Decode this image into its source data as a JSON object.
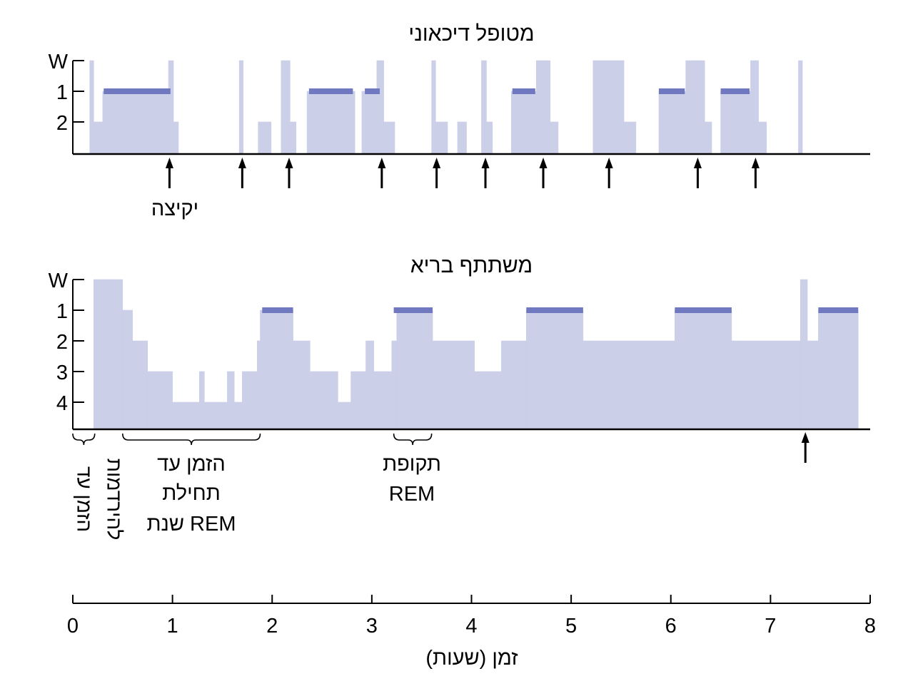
{
  "chart_data": [
    {
      "type": "area",
      "title": "מטופל דיכאוני",
      "x_unit": "hours",
      "stage_labels": [
        "W",
        "1",
        "2"
      ],
      "stages": {
        "W": 0,
        "1": 1,
        "2": 2
      },
      "ylim": [
        0,
        2.9
      ],
      "segments": [
        [
          0.17,
          0.21,
          0
        ],
        [
          0.21,
          0.3,
          2
        ],
        [
          0.3,
          0.96,
          1
        ],
        [
          0.96,
          1.01,
          0
        ],
        [
          1.01,
          1.06,
          2
        ],
        [
          1.06,
          1.67,
          null
        ],
        [
          1.67,
          1.71,
          0
        ],
        [
          1.71,
          1.86,
          null
        ],
        [
          1.86,
          1.99,
          2
        ],
        [
          1.99,
          2.09,
          null
        ],
        [
          2.09,
          2.18,
          0
        ],
        [
          2.18,
          2.24,
          2
        ],
        [
          2.24,
          2.35,
          null
        ],
        [
          2.35,
          2.83,
          1
        ],
        [
          2.83,
          2.9,
          null
        ],
        [
          2.9,
          3.05,
          1
        ],
        [
          3.05,
          3.12,
          0
        ],
        [
          3.12,
          3.23,
          2
        ],
        [
          3.23,
          3.6,
          null
        ],
        [
          3.6,
          3.64,
          0
        ],
        [
          3.64,
          3.76,
          2
        ],
        [
          3.76,
          3.86,
          null
        ],
        [
          3.86,
          3.95,
          2
        ],
        [
          3.95,
          4.1,
          null
        ],
        [
          4.1,
          4.15,
          0
        ],
        [
          4.15,
          4.21,
          2
        ],
        [
          4.21,
          4.4,
          null
        ],
        [
          4.4,
          4.65,
          1
        ],
        [
          4.65,
          4.79,
          0
        ],
        [
          4.79,
          4.87,
          2
        ],
        [
          4.87,
          5.22,
          null
        ],
        [
          5.22,
          5.53,
          0
        ],
        [
          5.53,
          5.65,
          2
        ],
        [
          5.65,
          5.88,
          null
        ],
        [
          5.88,
          6.15,
          1
        ],
        [
          6.15,
          6.34,
          0
        ],
        [
          6.34,
          6.41,
          2
        ],
        [
          6.41,
          6.5,
          null
        ],
        [
          6.5,
          6.8,
          1
        ],
        [
          6.8,
          6.88,
          0
        ],
        [
          6.88,
          6.96,
          2
        ],
        [
          6.96,
          7.28,
          null
        ],
        [
          7.28,
          7.32,
          0
        ]
      ],
      "rem_bars": [
        [
          0.31,
          0.98
        ],
        [
          2.37,
          2.81
        ],
        [
          2.93,
          3.08
        ],
        [
          4.41,
          4.64
        ],
        [
          5.88,
          6.14
        ],
        [
          6.5,
          6.79
        ]
      ],
      "arrows_x": [
        0.97,
        1.7,
        2.17,
        3.1,
        3.65,
        4.14,
        4.72,
        5.38,
        6.27,
        6.85
      ],
      "annotation": "יקיצה"
    },
    {
      "type": "area",
      "title": "משתתף בריא",
      "x_unit": "hours",
      "stage_labels": [
        "W",
        "1",
        "2",
        "3",
        "4"
      ],
      "stages": {
        "W": 0,
        "1": 1,
        "2": 2,
        "3": 3,
        "4": 4
      },
      "ylim": [
        0,
        4.9
      ],
      "segments": [
        [
          0.21,
          0.5,
          0
        ],
        [
          0.5,
          0.6,
          1
        ],
        [
          0.6,
          0.75,
          2
        ],
        [
          0.75,
          1.0,
          3
        ],
        [
          1.0,
          1.27,
          4
        ],
        [
          1.27,
          1.32,
          3
        ],
        [
          1.32,
          1.55,
          4
        ],
        [
          1.55,
          1.62,
          3
        ],
        [
          1.62,
          1.7,
          4
        ],
        [
          1.7,
          1.85,
          3
        ],
        [
          1.85,
          1.88,
          2
        ],
        [
          1.88,
          2.21,
          1
        ],
        [
          2.21,
          2.38,
          2
        ],
        [
          2.38,
          2.66,
          3
        ],
        [
          2.66,
          2.79,
          4
        ],
        [
          2.79,
          2.94,
          3
        ],
        [
          2.94,
          3.02,
          2
        ],
        [
          3.02,
          3.2,
          3
        ],
        [
          3.2,
          3.25,
          2
        ],
        [
          3.25,
          3.61,
          1
        ],
        [
          3.61,
          4.03,
          2
        ],
        [
          4.03,
          4.3,
          3
        ],
        [
          4.3,
          4.55,
          2
        ],
        [
          4.55,
          5.12,
          1
        ],
        [
          5.12,
          6.04,
          2
        ],
        [
          6.04,
          6.61,
          1
        ],
        [
          6.61,
          7.3,
          2
        ],
        [
          7.3,
          7.37,
          0
        ],
        [
          7.37,
          7.48,
          2
        ],
        [
          7.48,
          7.88,
          1
        ]
      ],
      "rem_bars": [
        [
          1.9,
          2.21
        ],
        [
          3.22,
          3.61
        ],
        [
          4.55,
          5.12
        ],
        [
          6.04,
          6.61
        ],
        [
          7.48,
          7.88
        ]
      ],
      "arrows_x": [
        7.35
      ],
      "brackets": [
        {
          "x0": 0.0,
          "x1": 0.22,
          "lines": [
            "הזמן עד",
            "להירדמות"
          ],
          "vertical": true
        },
        {
          "x0": 0.5,
          "x1": 1.88,
          "lines": [
            "הזמן  עד",
            "תחילת",
            "שנת REM"
          ]
        },
        {
          "x0": 3.22,
          "x1": 3.6,
          "lines": [
            "תקופת",
            "REM"
          ]
        }
      ]
    }
  ],
  "x_axis": {
    "ticks": [
      0,
      1,
      2,
      3,
      4,
      5,
      6,
      7,
      8
    ],
    "tick_labels": [
      "0",
      "1",
      "2",
      "3",
      "4",
      "5",
      "6",
      "7",
      "8"
    ],
    "label": "זמן (שעות)",
    "xlim": [
      0,
      8
    ]
  },
  "colors": {
    "fill": "#cbcfe8",
    "rem": "#7079bf",
    "axis": "#000000"
  }
}
